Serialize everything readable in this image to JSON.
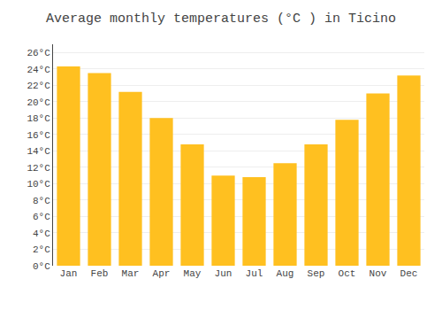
{
  "chart_data": {
    "type": "bar",
    "title": "Average monthly temperatures (°C ) in Ticino",
    "categories": [
      "Jan",
      "Feb",
      "Mar",
      "Apr",
      "May",
      "Jun",
      "Jul",
      "Aug",
      "Sep",
      "Oct",
      "Nov",
      "Dec"
    ],
    "values": [
      24.3,
      23.5,
      21.2,
      18.0,
      14.8,
      11.0,
      10.8,
      12.5,
      14.8,
      17.8,
      21.0,
      23.2
    ],
    "color": "#FFC020",
    "ylim": [
      0,
      27
    ],
    "yticks": [
      {
        "value": 0,
        "label": "0°C"
      },
      {
        "value": 2,
        "label": "2°C"
      },
      {
        "value": 4,
        "label": "4°C"
      },
      {
        "value": 6,
        "label": "6°C"
      },
      {
        "value": 8,
        "label": "8°C"
      },
      {
        "value": 10,
        "label": "10°C"
      },
      {
        "value": 12,
        "label": "12°C"
      },
      {
        "value": 14,
        "label": "14°C"
      },
      {
        "value": 16,
        "label": "16°C"
      },
      {
        "value": 18,
        "label": "18°C"
      },
      {
        "value": 20,
        "label": "20°C"
      },
      {
        "value": 22,
        "label": "22°C"
      },
      {
        "value": 24,
        "label": "24°C"
      },
      {
        "value": 26,
        "label": "26°C"
      }
    ],
    "grid": true
  }
}
